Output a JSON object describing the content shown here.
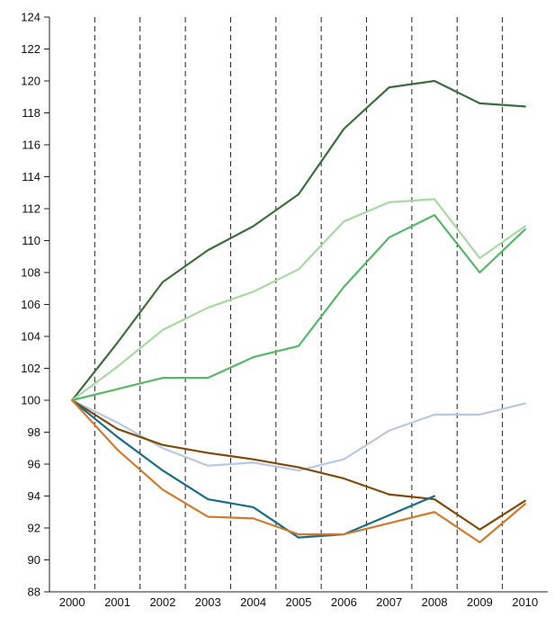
{
  "chart_data": {
    "type": "line",
    "title": "",
    "xlabel": "",
    "ylabel": "",
    "x": [
      "2000",
      "2001",
      "2002",
      "2003",
      "2004",
      "2005",
      "2006",
      "2007",
      "2008",
      "2009",
      "2010"
    ],
    "ylim": [
      88,
      124
    ],
    "yticks": [
      88,
      90,
      92,
      94,
      96,
      98,
      100,
      102,
      104,
      106,
      108,
      110,
      112,
      114,
      116,
      118,
      120,
      122,
      124
    ],
    "grid": {
      "vertical": "dashed",
      "horizontal": false
    },
    "legend": "none",
    "series": [
      {
        "color": "#3b6e3b",
        "values": [
          100,
          103.6,
          107.4,
          109.4,
          110.9,
          112.9,
          117.0,
          119.6,
          120.0,
          118.6,
          118.4
        ]
      },
      {
        "color": "#a8d8a3",
        "values": [
          100,
          102.1,
          104.4,
          105.8,
          106.8,
          108.2,
          111.2,
          112.4,
          112.6,
          108.9,
          110.9
        ]
      },
      {
        "color": "#56b866",
        "values": [
          100,
          100.7,
          101.4,
          101.4,
          102.7,
          103.4,
          107.1,
          110.2,
          111.6,
          108.0,
          110.7
        ]
      },
      {
        "color": "#b7c9e2",
        "values": [
          100,
          98.6,
          97.0,
          95.9,
          96.1,
          95.6,
          96.3,
          98.1,
          99.1,
          99.1,
          99.8
        ]
      },
      {
        "color": "#804a08",
        "values": [
          100,
          98.2,
          97.2,
          96.7,
          96.3,
          95.8,
          95.1,
          94.1,
          93.8,
          91.9,
          93.7
        ]
      },
      {
        "color": "#1a6b8a",
        "values": [
          100,
          97.7,
          95.6,
          93.8,
          93.3,
          91.4,
          91.6,
          null,
          94.0,
          null,
          null
        ]
      },
      {
        "color": "#d27a2c",
        "values": [
          100,
          96.9,
          94.4,
          92.7,
          92.6,
          91.6,
          91.6,
          92.3,
          93.0,
          91.1,
          93.5
        ]
      }
    ]
  }
}
